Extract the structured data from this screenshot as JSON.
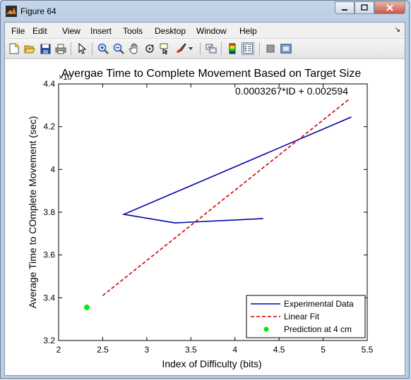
{
  "window": {
    "title": "Figure 64"
  },
  "menu": [
    "File",
    "Edit",
    "View",
    "Insert",
    "Tools",
    "Desktop",
    "Window",
    "Help"
  ],
  "toolbar_icons": [
    "new-figure-icon",
    "open-file-icon",
    "save-icon",
    "print-icon",
    "edit-plot-icon",
    "zoom-in-icon",
    "zoom-out-icon",
    "pan-icon",
    "rotate-3d-icon",
    "data-cursor-icon",
    "brush-icon",
    "link-plot-icon",
    "colorbar-icon",
    "legend-icon",
    "hide-plot-tools-icon",
    "show-plot-tools-icon"
  ],
  "chart_data": {
    "type": "line",
    "title": "Avergae Time to Complete Movement Based on Target Size",
    "xlabel": "Index of Difficulty (bits)",
    "ylabel": "Average Time to COmplete Movement (sec)",
    "y_exponent_label": "×10",
    "xlim": [
      2,
      5.5
    ],
    "ylim": [
      3.2,
      4.4
    ],
    "x_ticks": [
      "2",
      "2.5",
      "3",
      "3.5",
      "4",
      "4.5",
      "5",
      "5.5"
    ],
    "y_ticks": [
      "3.2",
      "3.4",
      "3.6",
      "3.8",
      "4",
      "4.2",
      "4.4"
    ],
    "annotation": "0.0003267*ID + 0.002594",
    "series": [
      {
        "name": "Experimental Data",
        "style": "solid",
        "color": "#0000aa",
        "x": [
          4.32,
          3.32,
          2.74,
          5.32
        ],
        "y": [
          3.77,
          3.75,
          3.79,
          4.245
        ]
      },
      {
        "name": "Linear Fit",
        "style": "dashed",
        "color": "#cc0000",
        "x": [
          2.5,
          5.3
        ],
        "y": [
          3.41,
          4.33
        ]
      },
      {
        "name": "Prediction at 4 cm",
        "style": "marker",
        "color": "#00ee00",
        "x": [
          2.32
        ],
        "y": [
          3.355
        ]
      }
    ],
    "legend_position": "bottom-right"
  }
}
